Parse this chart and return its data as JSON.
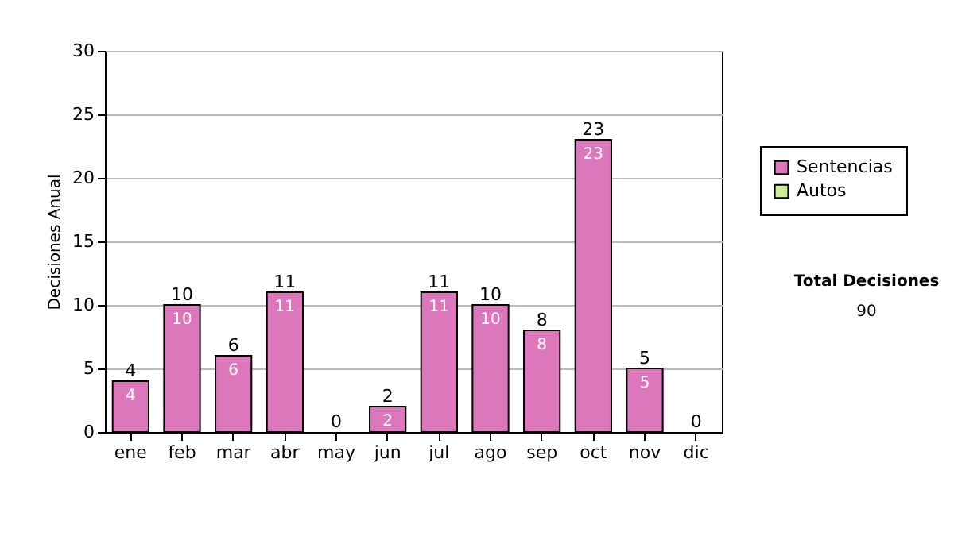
{
  "chart_data": {
    "type": "bar",
    "ylabel": "Decisiones Anual",
    "categories": [
      "ene",
      "feb",
      "mar",
      "abr",
      "may",
      "jun",
      "jul",
      "ago",
      "sep",
      "oct",
      "nov",
      "dic"
    ],
    "series": [
      {
        "name": "Sentencias",
        "color": "#dd77bb",
        "values": [
          4,
          10,
          6,
          11,
          0,
          2,
          11,
          10,
          8,
          23,
          5,
          0
        ],
        "value_labels": [
          "4",
          "10",
          "6",
          "11",
          null,
          "2",
          "11",
          "10",
          "8",
          "23",
          "5",
          null
        ]
      },
      {
        "name": "Autos",
        "color": "#ccee99",
        "values": [
          0,
          0,
          0,
          0,
          0,
          0,
          0,
          0,
          0,
          0,
          0,
          0
        ]
      }
    ],
    "stacked": true,
    "totals": [
      "4",
      "10",
      "6",
      "11",
      "0",
      "2",
      "11",
      "10",
      "8",
      "23",
      "5",
      "0"
    ],
    "ylim": [
      0,
      30
    ],
    "yticks": [
      0,
      5,
      10,
      15,
      20,
      25,
      30
    ],
    "grid": "y",
    "legend": "right",
    "annotations": [
      "Total Decisiones",
      "90"
    ]
  }
}
